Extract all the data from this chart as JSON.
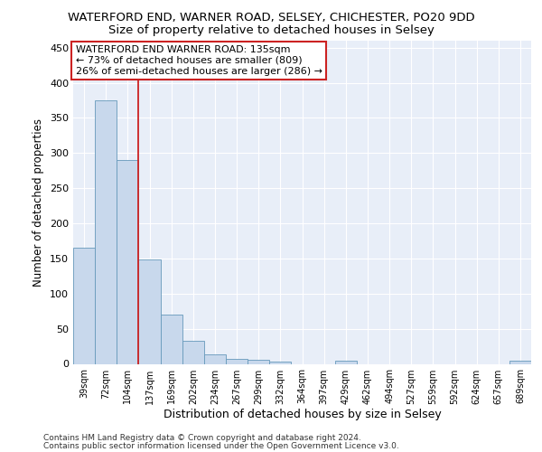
{
  "title": "WATERFORD END, WARNER ROAD, SELSEY, CHICHESTER, PO20 9DD",
  "subtitle": "Size of property relative to detached houses in Selsey",
  "xlabel": "Distribution of detached houses by size in Selsey",
  "ylabel": "Number of detached properties",
  "bar_labels": [
    "39sqm",
    "72sqm",
    "104sqm",
    "137sqm",
    "169sqm",
    "202sqm",
    "234sqm",
    "267sqm",
    "299sqm",
    "332sqm",
    "364sqm",
    "397sqm",
    "429sqm",
    "462sqm",
    "494sqm",
    "527sqm",
    "559sqm",
    "592sqm",
    "624sqm",
    "657sqm",
    "689sqm"
  ],
  "bar_values": [
    165,
    375,
    290,
    148,
    70,
    33,
    14,
    7,
    6,
    3,
    0,
    0,
    4,
    0,
    0,
    0,
    0,
    0,
    0,
    0,
    4
  ],
  "bar_color": "#c8d8ec",
  "bar_edge_color": "#6699bb",
  "vline_x": 2.5,
  "vline_color": "#cc2222",
  "annotation_text": "WATERFORD END WARNER ROAD: 135sqm\n← 73% of detached houses are smaller (809)\n26% of semi-detached houses are larger (286) →",
  "annotation_box_color": "#ffffff",
  "annotation_box_edge_color": "#cc2222",
  "ylim": [
    0,
    460
  ],
  "yticks": [
    0,
    50,
    100,
    150,
    200,
    250,
    300,
    350,
    400,
    450
  ],
  "background_color": "#e8eef8",
  "grid_color": "#ffffff",
  "footer_line1": "Contains HM Land Registry data © Crown copyright and database right 2024.",
  "footer_line2": "Contains public sector information licensed under the Open Government Licence v3.0.",
  "title_fontsize": 9.5,
  "subtitle_fontsize": 9.5,
  "xlabel_fontsize": 9,
  "ylabel_fontsize": 8.5,
  "ann_fontsize": 8,
  "footer_fontsize": 6.5
}
